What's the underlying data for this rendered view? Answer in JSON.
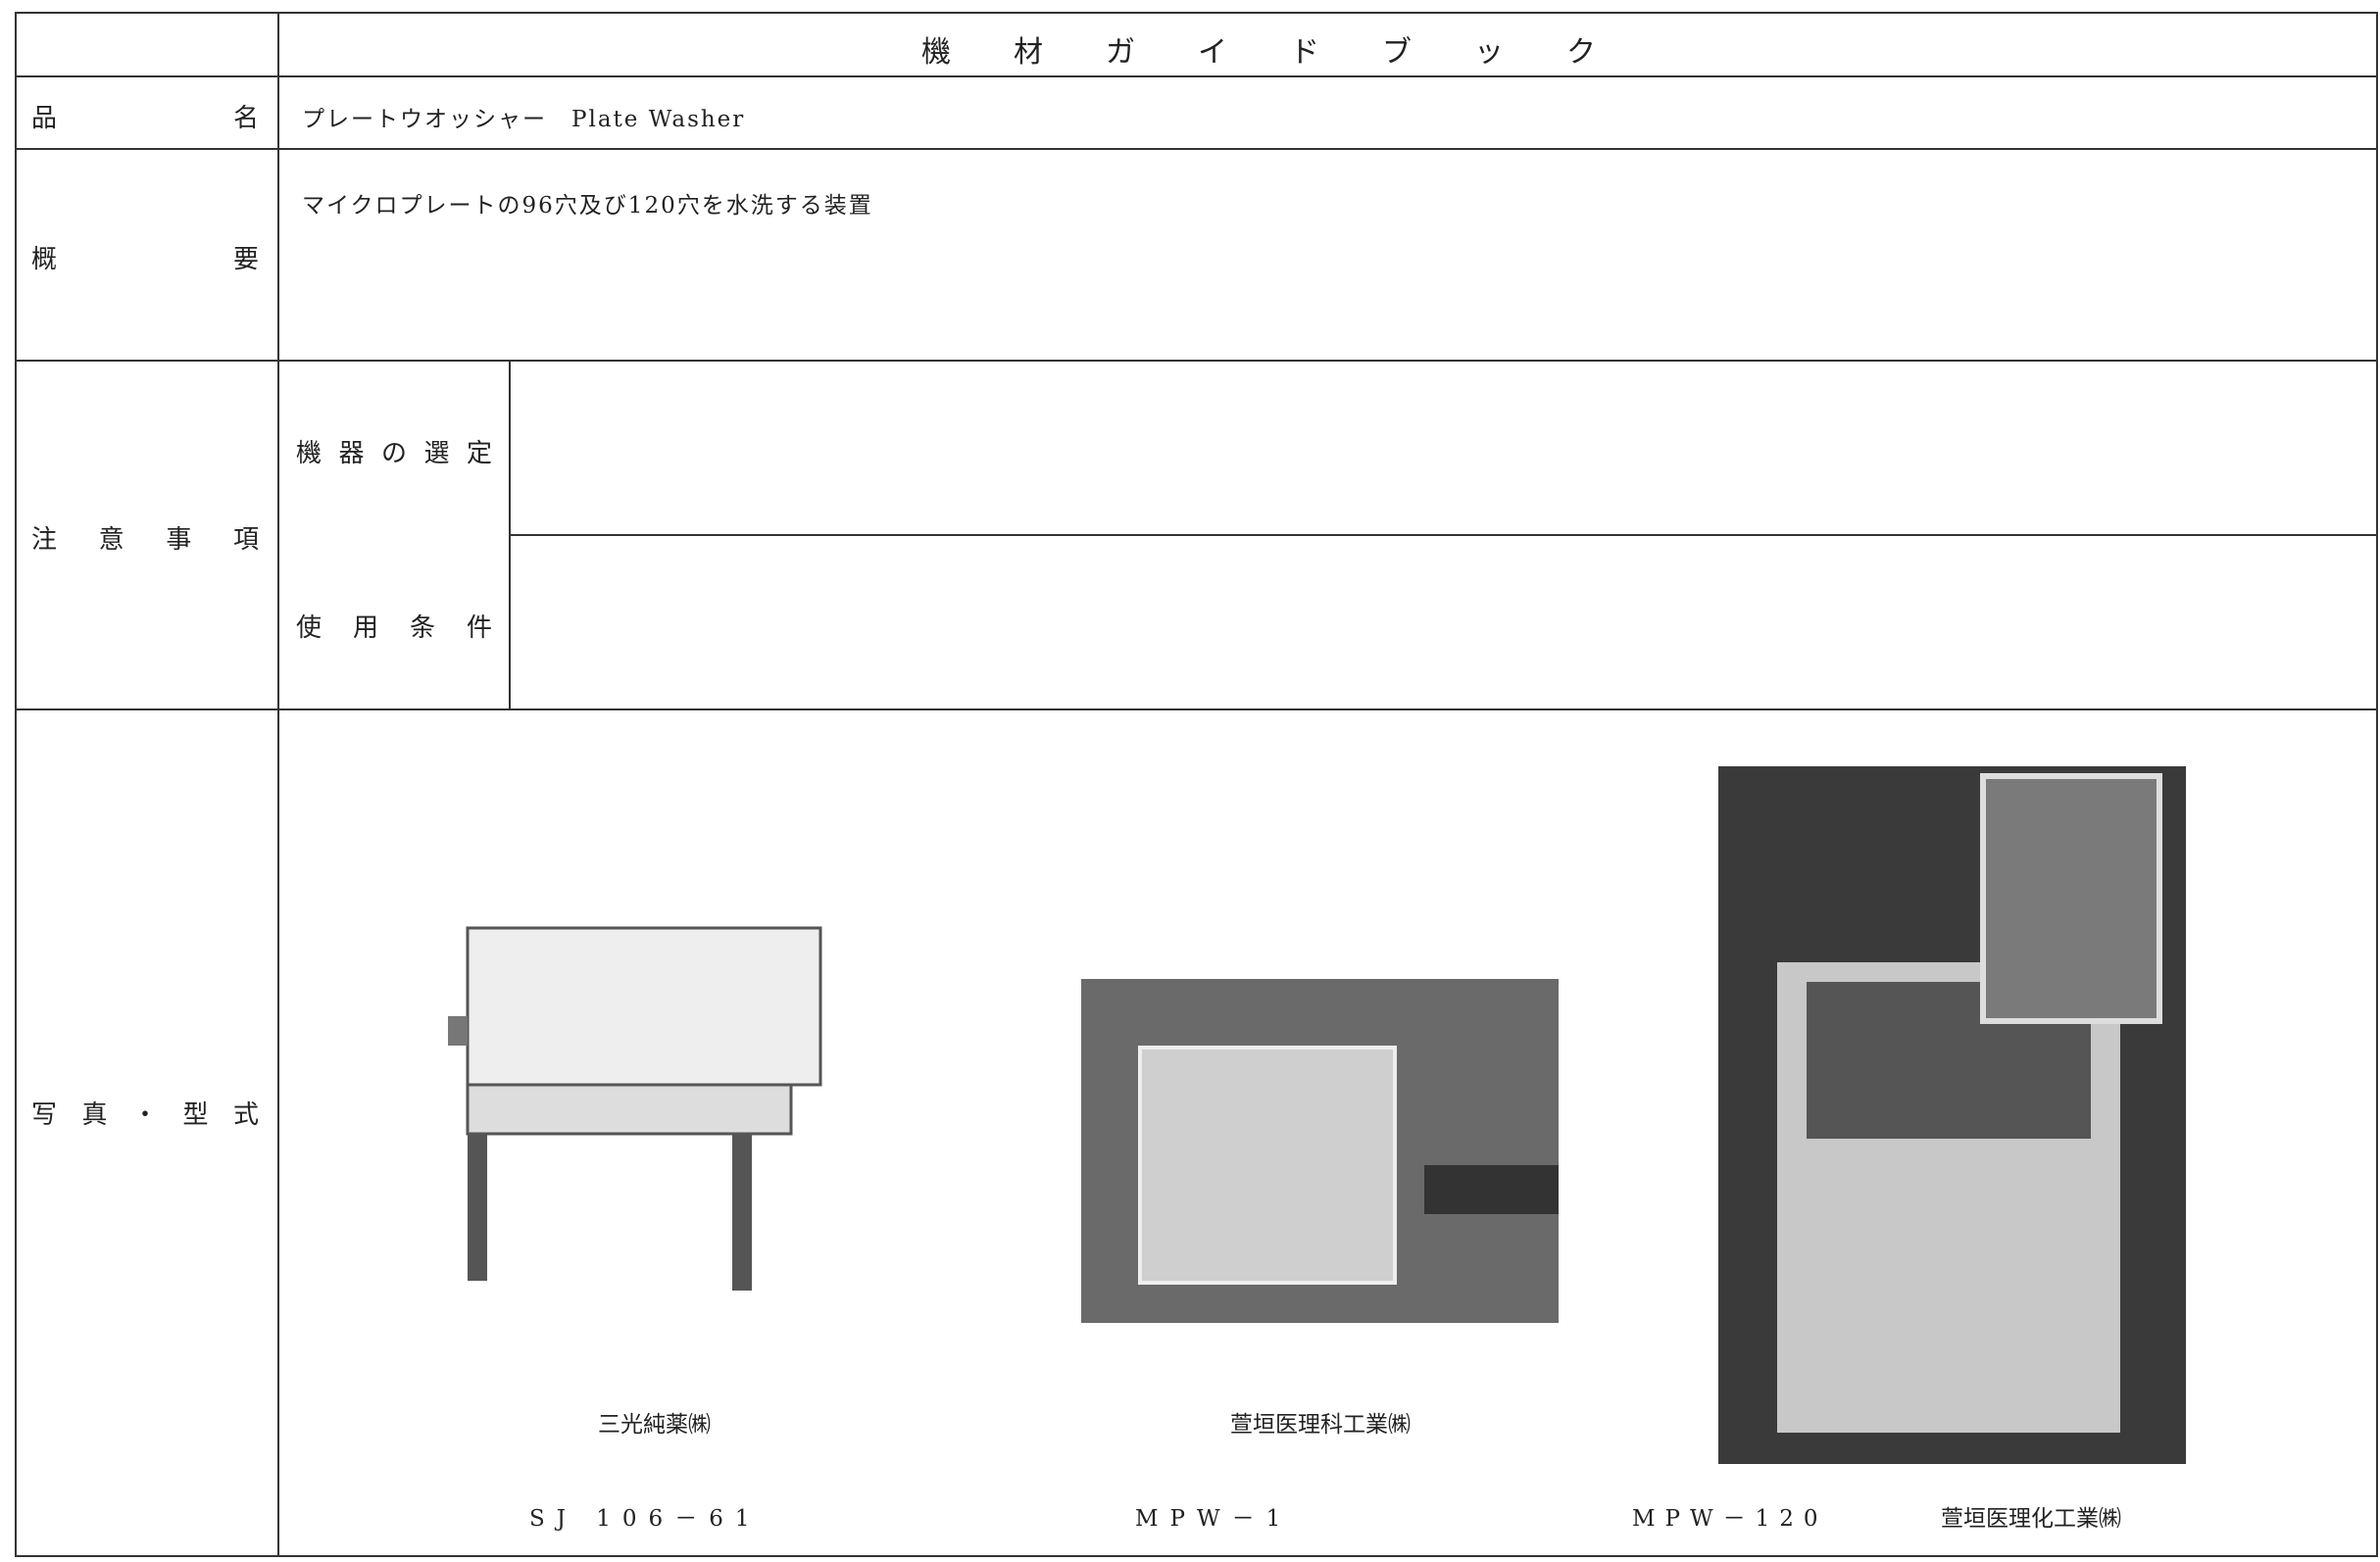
{
  "header": {
    "title": "機材ガイドブック"
  },
  "product_name": {
    "label": "品名",
    "value": "プレートウオッシャー　Plate Washer"
  },
  "overview": {
    "label": "概要",
    "value": "マイクロプレートの96穴及び120穴を水洗する装置"
  },
  "notes": {
    "label": "注意事項",
    "items": [
      {
        "label": "機器の選定"
      },
      {
        "label": "使用条件"
      }
    ]
  },
  "photos": {
    "label": "写真・型式",
    "items": [
      {
        "maker": "三光純薬㈱",
        "model": "SJ 106－61"
      },
      {
        "maker": "萱垣医理科工業㈱",
        "model": "MPW－1"
      },
      {
        "maker": "萱垣医理化工業㈱",
        "model": "MPW－120"
      }
    ]
  }
}
